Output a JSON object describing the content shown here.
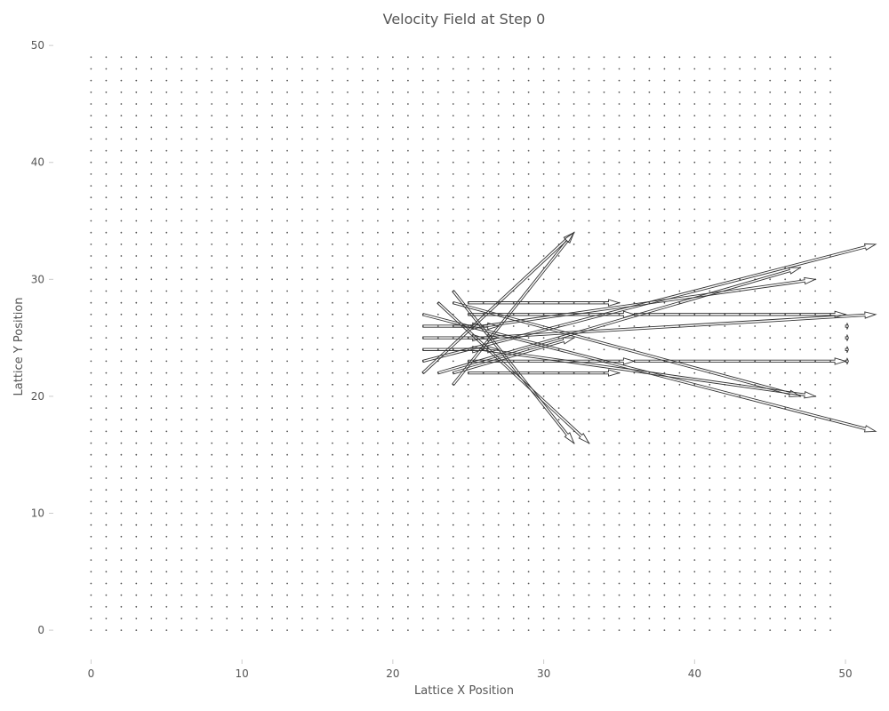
{
  "chart_data": {
    "type": "quiver",
    "title": "Velocity Field at Step 0",
    "xlabel": "Lattice X Position",
    "ylabel": "Lattice Y Position",
    "xlim": [
      -2.5,
      52
    ],
    "ylim": [
      -2.5,
      51
    ],
    "xticks": [
      0,
      10,
      20,
      30,
      40,
      50
    ],
    "yticks": [
      0,
      10,
      20,
      30,
      40,
      50
    ],
    "grid": false,
    "lattice": {
      "nx": 50,
      "ny": 50
    },
    "arrows": [
      {
        "x": 22,
        "y": 27,
        "u": 30,
        "v": -10
      },
      {
        "x": 22,
        "y": 26,
        "u": 4,
        "v": 0
      },
      {
        "x": 22,
        "y": 25,
        "u": 4,
        "v": 0
      },
      {
        "x": 22,
        "y": 24,
        "u": 4,
        "v": 0
      },
      {
        "x": 22,
        "y": 23,
        "u": 30,
        "v": 10
      },
      {
        "x": 22,
        "y": 22,
        "u": 10,
        "v": 12
      },
      {
        "x": 23,
        "y": 28,
        "u": 10,
        "v": -12
      },
      {
        "x": 23,
        "y": 22,
        "u": 24,
        "v": 9
      },
      {
        "x": 24,
        "y": 28,
        "u": 23,
        "v": -8
      },
      {
        "x": 24,
        "y": 22,
        "u": 8,
        "v": 3
      },
      {
        "x": 24,
        "y": 26,
        "u": 3,
        "v": 0
      },
      {
        "x": 24,
        "y": 24,
        "u": 3,
        "v": 0
      },
      {
        "x": 25,
        "y": 23,
        "u": 11,
        "v": 0
      },
      {
        "x": 25,
        "y": 27,
        "u": 11,
        "v": 0
      },
      {
        "x": 25,
        "y": 25,
        "u": 2,
        "v": 0
      },
      {
        "x": 26,
        "y": 25,
        "u": 26,
        "v": 2
      },
      {
        "x": 24,
        "y": 21,
        "u": 8,
        "v": 13
      },
      {
        "x": 24,
        "y": 29,
        "u": 8,
        "v": -13
      },
      {
        "x": 25,
        "y": 22,
        "u": 10,
        "v": 0
      },
      {
        "x": 25,
        "y": 28,
        "u": 10,
        "v": 0
      },
      {
        "x": 26,
        "y": 24,
        "u": 22,
        "v": -4
      },
      {
        "x": 26,
        "y": 26,
        "u": 22,
        "v": 4
      },
      {
        "x": 36,
        "y": 27,
        "u": 14,
        "v": 0
      },
      {
        "x": 36,
        "y": 23,
        "u": 14,
        "v": 0
      },
      {
        "x": 50,
        "y": 26,
        "u": 0.2,
        "v": 0
      },
      {
        "x": 50,
        "y": 25,
        "u": 0.2,
        "v": 0
      },
      {
        "x": 50,
        "y": 24,
        "u": 0.2,
        "v": 0
      },
      {
        "x": 50,
        "y": 23,
        "u": 0.2,
        "v": 0
      }
    ]
  }
}
